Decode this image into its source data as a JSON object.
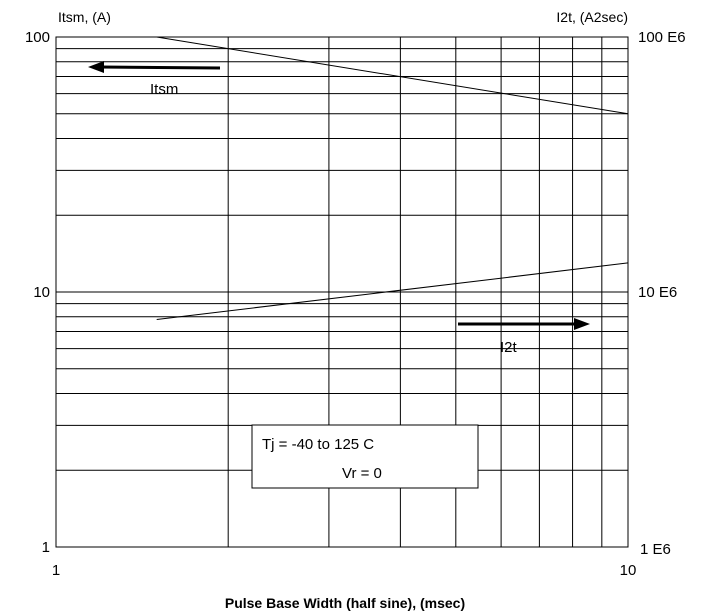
{
  "chart_data": {
    "type": "line",
    "title": "",
    "xlabel": "Pulse Base Width (half sine), (msec)",
    "ylabel_left": "Itsm, (A)",
    "ylabel_right": "I2t, (A2sec)",
    "x_scale": "log",
    "y_scale": "log",
    "xlim": [
      1,
      10
    ],
    "ylim_left": [
      1,
      100
    ],
    "ylim_right": [
      "1 E6",
      "100 E6"
    ],
    "grid": true,
    "x_ticks": [
      "1",
      "10"
    ],
    "y_ticks_left": [
      "1",
      "10",
      "100"
    ],
    "y_ticks_right": [
      "1 E6",
      "10 E6",
      "100 E6"
    ],
    "series": [
      {
        "name": "Itsm",
        "axis": "left",
        "x": [
          1.5,
          10
        ],
        "y": [
          100,
          50
        ]
      },
      {
        "name": "I2t",
        "axis": "right",
        "x": [
          1.5,
          10
        ],
        "y": [
          7.8,
          13
        ]
      }
    ],
    "annotations": {
      "itsm_arrow_label": "Itsm",
      "i2t_arrow_label": "I2t",
      "condition_line1": "Tj = -40 to 125 C",
      "condition_line2": "Vr = 0"
    }
  }
}
